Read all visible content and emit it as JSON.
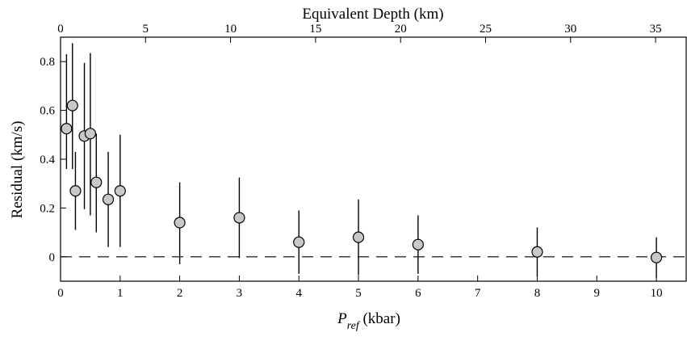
{
  "chart_data": {
    "type": "scatter",
    "title": "",
    "xlabel_prefix": "P",
    "xlabel_sub": "ref",
    "xlabel_suffix": " (kbar)",
    "ylabel": "Residual (km/s)",
    "x2label": "Equivalent Depth (km)",
    "xlim": [
      0,
      10.5
    ],
    "ylim": [
      -0.1,
      0.9
    ],
    "x2lim": [
      0,
      36.8
    ],
    "xticks": [
      0,
      1,
      2,
      3,
      4,
      5,
      6,
      7,
      8,
      9,
      10
    ],
    "yticks": [
      0,
      0.2,
      0.4,
      0.6,
      0.8
    ],
    "x2ticks": [
      0,
      5,
      10,
      15,
      20,
      25,
      30,
      35
    ],
    "grid": false,
    "reference_line": {
      "y": 0,
      "style": "dashed"
    },
    "marker_color": "#c8c8c8",
    "points": [
      {
        "x": 0.1,
        "y": 0.525,
        "ylow": 0.36,
        "yhigh": 0.83
      },
      {
        "x": 0.2,
        "y": 0.62,
        "ylow": 0.36,
        "yhigh": 0.875
      },
      {
        "x": 0.25,
        "y": 0.27,
        "ylow": 0.11,
        "yhigh": 0.43
      },
      {
        "x": 0.4,
        "y": 0.495,
        "ylow": 0.195,
        "yhigh": 0.795
      },
      {
        "x": 0.5,
        "y": 0.505,
        "ylow": 0.17,
        "yhigh": 0.835
      },
      {
        "x": 0.6,
        "y": 0.305,
        "ylow": 0.1,
        "yhigh": 0.505
      },
      {
        "x": 0.8,
        "y": 0.235,
        "ylow": 0.04,
        "yhigh": 0.43
      },
      {
        "x": 1.0,
        "y": 0.27,
        "ylow": 0.04,
        "yhigh": 0.5
      },
      {
        "x": 2.0,
        "y": 0.14,
        "ylow": -0.03,
        "yhigh": 0.305
      },
      {
        "x": 3.0,
        "y": 0.16,
        "ylow": -0.005,
        "yhigh": 0.325
      },
      {
        "x": 4.0,
        "y": 0.06,
        "ylow": -0.07,
        "yhigh": 0.19
      },
      {
        "x": 5.0,
        "y": 0.08,
        "ylow": -0.075,
        "yhigh": 0.235
      },
      {
        "x": 6.0,
        "y": 0.05,
        "ylow": -0.07,
        "yhigh": 0.17
      },
      {
        "x": 8.0,
        "y": 0.02,
        "ylow": -0.08,
        "yhigh": 0.12
      },
      {
        "x": 10.0,
        "y": -0.003,
        "ylow": -0.085,
        "yhigh": 0.08
      }
    ]
  }
}
